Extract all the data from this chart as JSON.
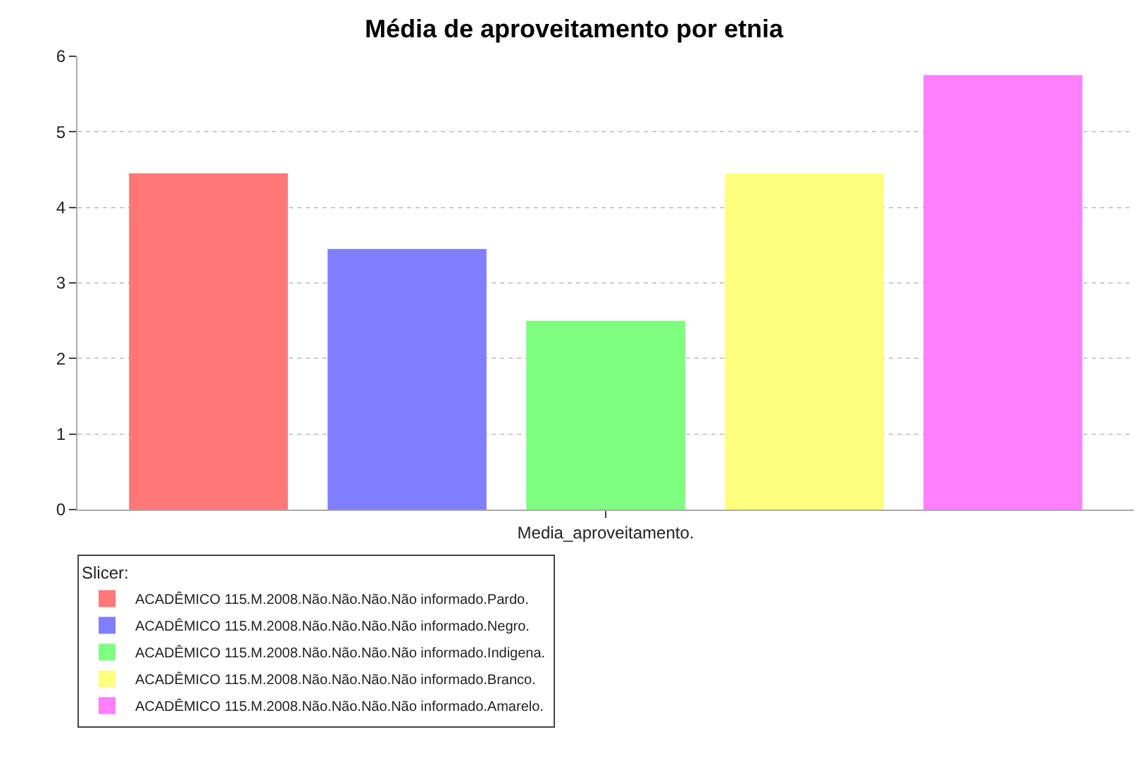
{
  "chart_data": {
    "type": "bar",
    "title": "Média de aproveitamento por etnia",
    "categories": [
      "Media_aproveitamento."
    ],
    "series": [
      {
        "name": "ACADÊMICO 115.M.2008.Não.Não.Não.Não informado.Pardo.",
        "color": "#ff7777",
        "values": [
          4.45
        ]
      },
      {
        "name": "ACADÊMICO 115.M.2008.Não.Não.Não.Não informado.Negro.",
        "color": "#7f7fff",
        "values": [
          3.45
        ]
      },
      {
        "name": "ACADÊMICO 115.M.2008.Não.Não.Não.Não informado.Indigena.",
        "color": "#7fff7f",
        "values": [
          2.5
        ]
      },
      {
        "name": "ACADÊMICO 115.M.2008.Não.Não.Não.Não informado.Branco.",
        "color": "#ffff7f",
        "values": [
          4.45
        ]
      },
      {
        "name": "ACADÊMICO 115.M.2008.Não.Não.Não.Não informado.Amarelo.",
        "color": "#ff7fff",
        "values": [
          5.75
        ]
      }
    ],
    "legend_title": "Slicer:",
    "legend": "bottom",
    "ylim": [
      0,
      6
    ],
    "yticks": [
      0,
      1,
      2,
      3,
      4,
      5,
      6
    ],
    "grid": "y"
  }
}
